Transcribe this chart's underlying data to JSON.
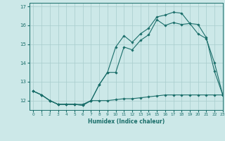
{
  "xlabel": "Humidex (Indice chaleur)",
  "xlim": [
    -0.5,
    23
  ],
  "ylim": [
    11.5,
    17.2
  ],
  "yticks": [
    12,
    13,
    14,
    15,
    16,
    17
  ],
  "xticks": [
    0,
    1,
    2,
    3,
    4,
    5,
    6,
    7,
    8,
    9,
    10,
    11,
    12,
    13,
    14,
    15,
    16,
    17,
    18,
    19,
    20,
    21,
    22,
    23
  ],
  "bg_color": "#cce8e8",
  "line_color": "#1a6e6a",
  "grid_color": "#a8cccc",
  "line1_x": [
    0,
    1,
    2,
    3,
    4,
    5,
    6,
    7,
    8,
    9,
    10,
    11,
    12,
    13,
    14,
    15,
    16,
    17,
    18,
    19,
    20,
    21,
    22,
    23
  ],
  "line1_y": [
    12.5,
    12.3,
    12.0,
    11.8,
    11.8,
    11.8,
    11.8,
    12.0,
    12.0,
    12.0,
    12.05,
    12.1,
    12.1,
    12.15,
    12.2,
    12.25,
    12.3,
    12.3,
    12.3,
    12.3,
    12.3,
    12.3,
    12.3,
    12.3
  ],
  "line2_x": [
    0,
    1,
    2,
    3,
    4,
    5,
    6,
    7,
    8,
    9,
    10,
    11,
    12,
    13,
    14,
    15,
    16,
    17,
    18,
    19,
    20,
    21,
    22,
    23
  ],
  "line2_y": [
    12.5,
    12.3,
    12.0,
    11.8,
    11.8,
    11.8,
    11.75,
    12.0,
    12.85,
    13.5,
    13.5,
    14.85,
    14.7,
    15.2,
    15.5,
    16.3,
    16.0,
    16.15,
    16.05,
    16.1,
    15.55,
    15.3,
    14.0,
    12.3
  ],
  "line3_x": [
    0,
    1,
    2,
    3,
    4,
    5,
    6,
    7,
    8,
    9,
    10,
    11,
    12,
    13,
    14,
    15,
    16,
    17,
    18,
    19,
    20,
    21,
    22,
    23
  ],
  "line3_y": [
    12.5,
    12.3,
    12.0,
    11.8,
    11.8,
    11.8,
    11.75,
    12.0,
    12.85,
    13.5,
    14.85,
    15.45,
    15.1,
    15.55,
    15.85,
    16.45,
    16.55,
    16.7,
    16.65,
    16.1,
    16.05,
    15.35,
    13.55,
    12.3
  ]
}
